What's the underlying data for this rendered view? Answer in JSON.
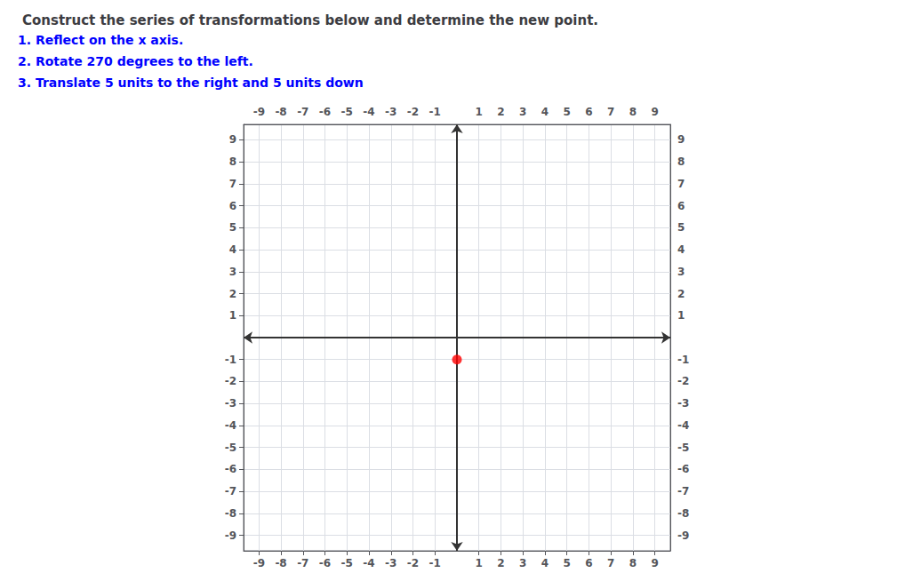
{
  "chart_data": {
    "type": "scatter",
    "title": "Construct the series of transformations below and determine the new point.",
    "annotations": [
      {
        "text": "1. Reflect on the x axis.",
        "color": "blue"
      },
      {
        "text": "2. Rotate 270 degrees to the left.",
        "color": "blue"
      },
      {
        "text": "3. Translate 5 units to the right and 5 units down",
        "color": "blue"
      }
    ],
    "x": [
      0
    ],
    "values": [
      -1
    ],
    "color": "red",
    "xlim": [
      -9.7,
      9.7
    ],
    "ylim": [
      -9.7,
      9.7
    ],
    "xticks": [
      -9,
      -8,
      -7,
      -6,
      -5,
      -4,
      -3,
      -2,
      -1,
      1,
      2,
      3,
      4,
      5,
      6,
      7,
      8,
      9
    ],
    "yticks": [
      -9,
      -8,
      -7,
      -6,
      -5,
      -4,
      -3,
      -2,
      -1,
      1,
      2,
      3,
      4,
      5,
      6,
      7,
      8,
      9
    ],
    "grid": true
  }
}
